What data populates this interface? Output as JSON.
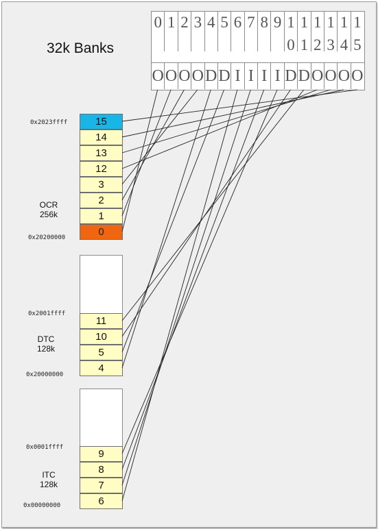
{
  "title": "32k Banks",
  "header": {
    "columns": [
      {
        "top": "0",
        "bottom": ""
      },
      {
        "top": "1",
        "bottom": ""
      },
      {
        "top": "2",
        "bottom": ""
      },
      {
        "top": "3",
        "bottom": ""
      },
      {
        "top": "4",
        "bottom": ""
      },
      {
        "top": "5",
        "bottom": ""
      },
      {
        "top": "6",
        "bottom": ""
      },
      {
        "top": "7",
        "bottom": ""
      },
      {
        "top": "8",
        "bottom": ""
      },
      {
        "top": "9",
        "bottom": ""
      },
      {
        "top": "1",
        "bottom": "0"
      },
      {
        "top": "1",
        "bottom": "1"
      },
      {
        "top": "1",
        "bottom": "2"
      },
      {
        "top": "1",
        "bottom": "3"
      },
      {
        "top": "1",
        "bottom": "4"
      },
      {
        "top": "1",
        "bottom": "5"
      }
    ],
    "mapping": [
      "O",
      "O",
      "O",
      "O",
      "D",
      "D",
      "I",
      "I",
      "I",
      "I",
      "D",
      "D",
      "O",
      "O",
      "O",
      "O"
    ]
  },
  "regions": {
    "ocr": {
      "name": "OCR",
      "size": "256k",
      "addr_high": "0x2023ffff",
      "addr_low": "0x20200000",
      "banks": [
        "15",
        "14",
        "13",
        "12",
        "3",
        "2",
        "1",
        "0"
      ]
    },
    "dtc": {
      "name": "DTC",
      "size": "128k",
      "addr_high": "0x2001ffff",
      "addr_low": "0x20000000",
      "banks": [
        "11",
        "10",
        "5",
        "4"
      ]
    },
    "itc": {
      "name": "ITC",
      "size": "128k",
      "addr_high": "0x0001ffff",
      "addr_low": "0x00000000",
      "banks": [
        "9",
        "8",
        "7",
        "6"
      ]
    }
  },
  "colors": {
    "bank_fill": "#fffdc4",
    "bank_15": "#18b6e8",
    "bank_0": "#ef6512"
  }
}
